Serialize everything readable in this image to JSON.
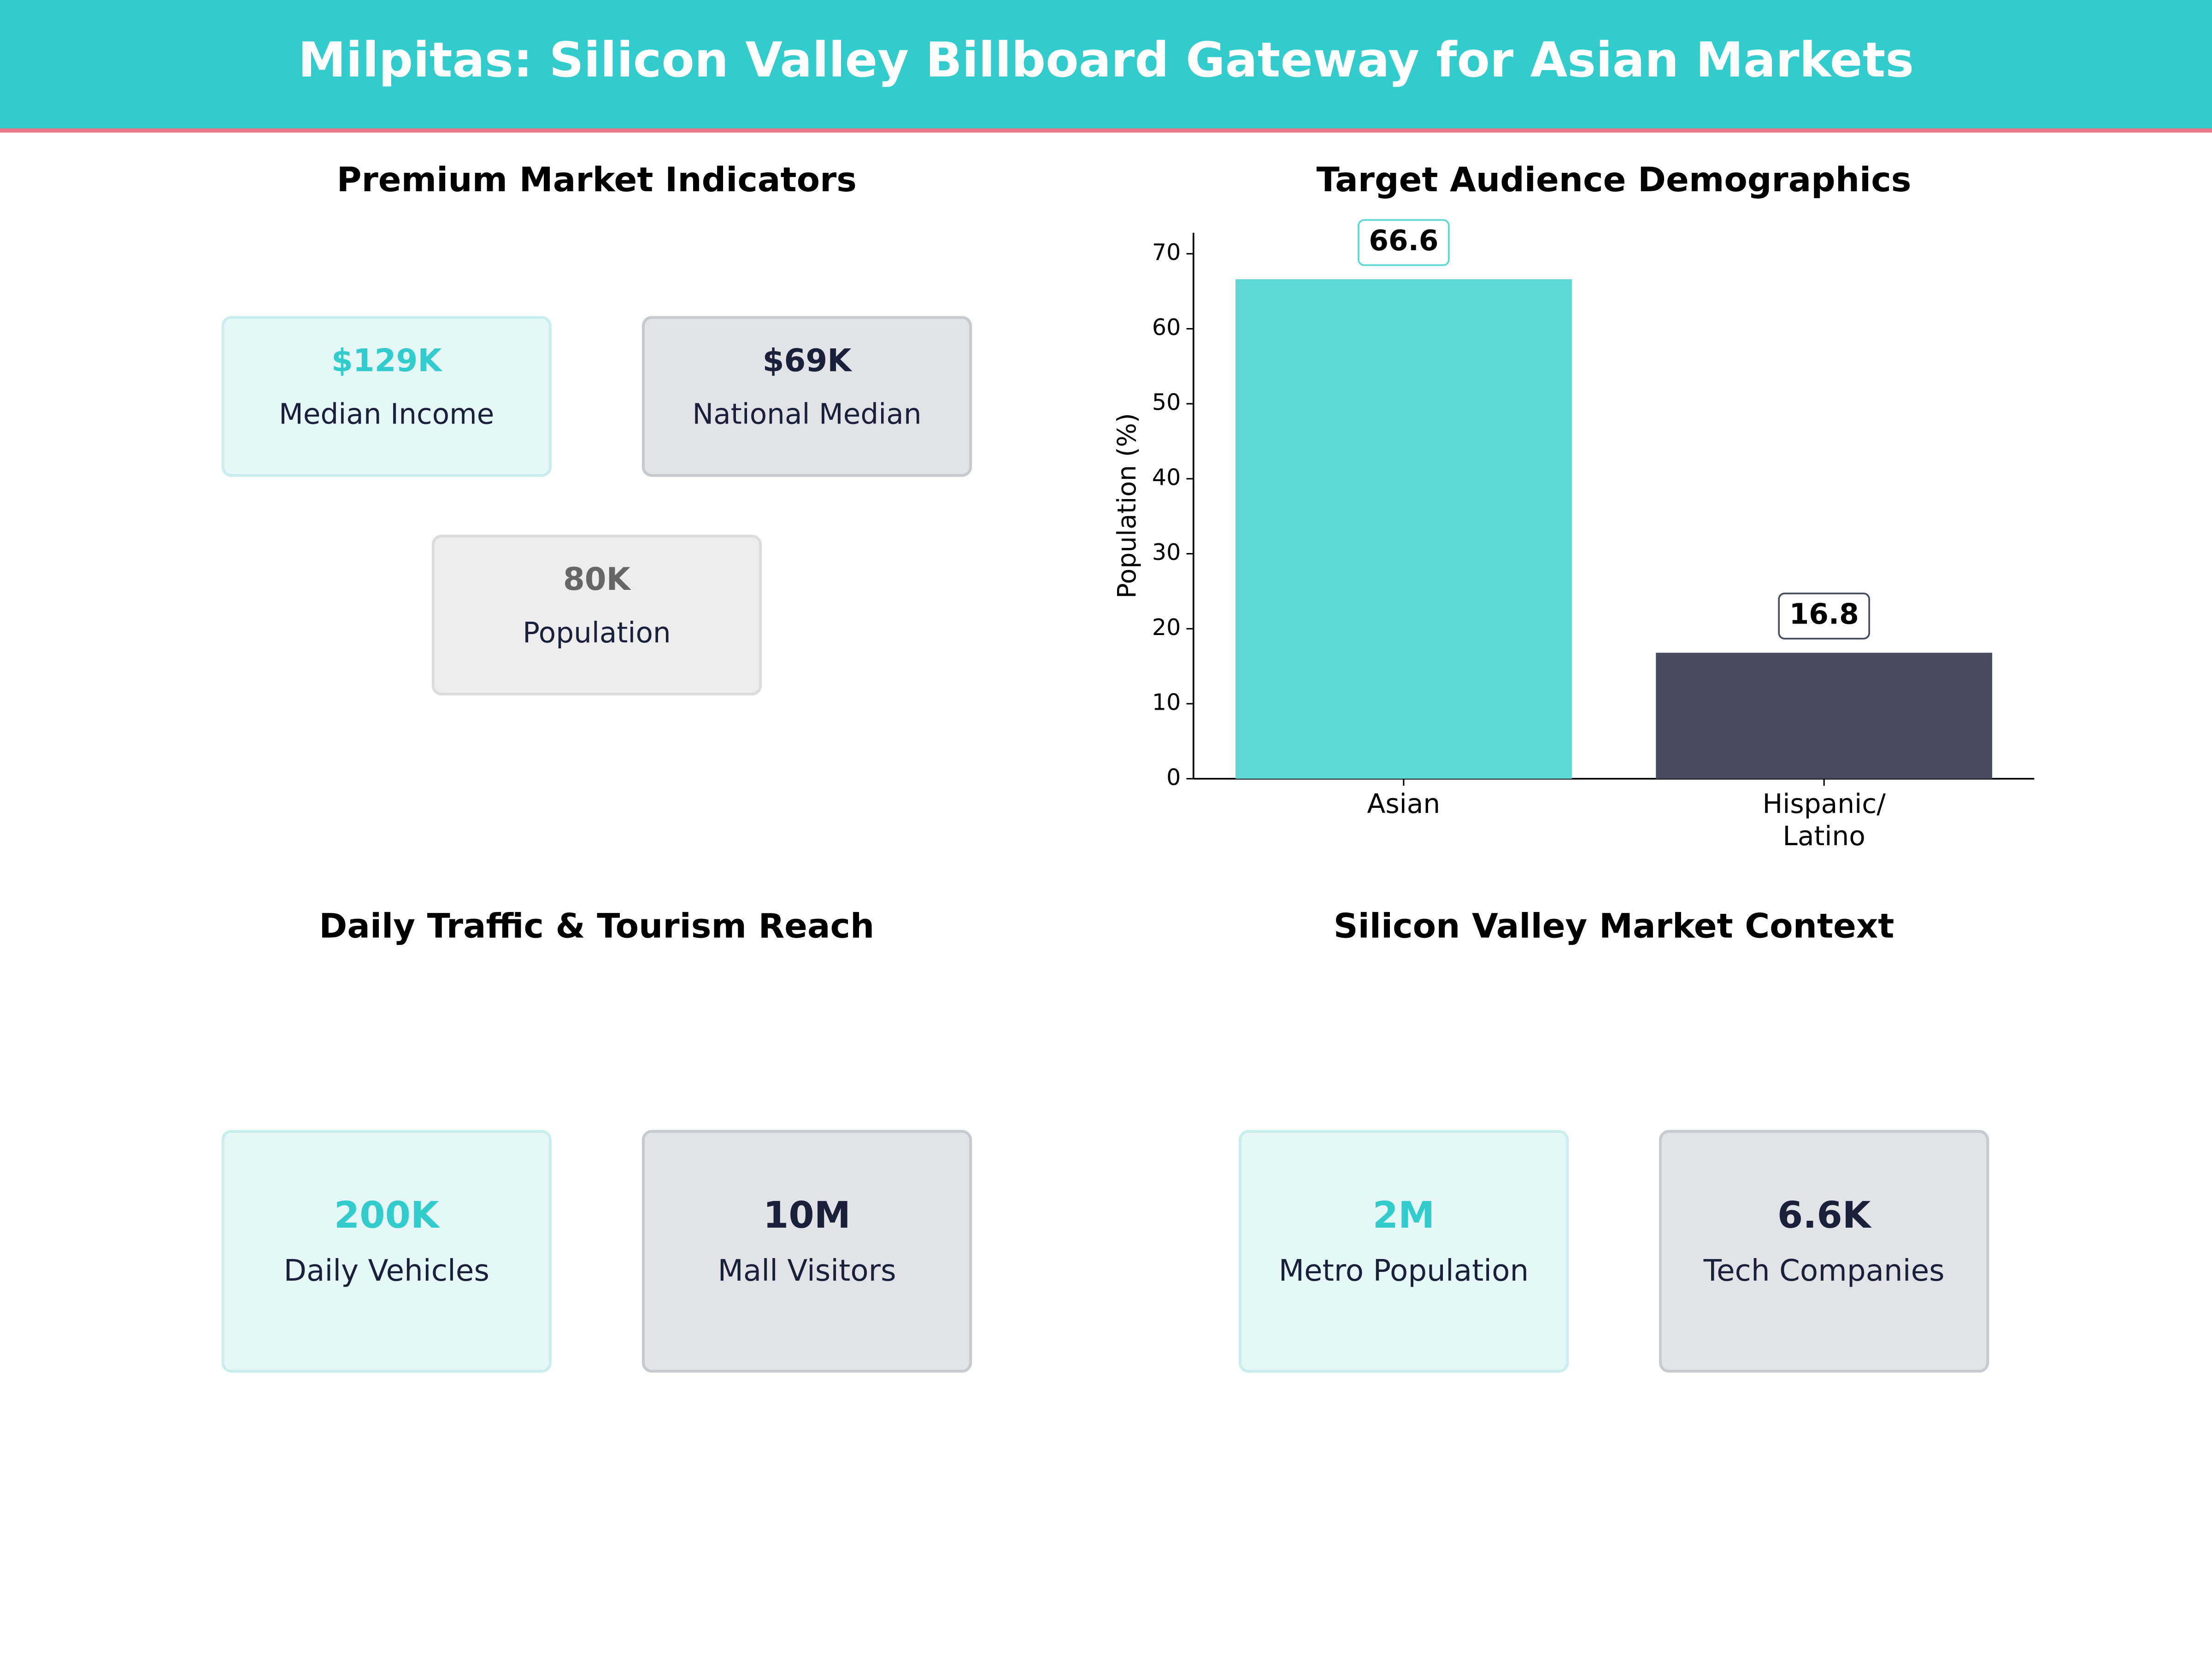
{
  "title": "Milpitas: Silicon Valley Billboard Gateway for Asian Markets",
  "kpi_panels": [
    {
      "title": "Premium Market Indicators",
      "cards": [
        {
          "value": "$129K",
          "label": "Median Income"
        },
        {
          "value": "$69K",
          "label": "National Median"
        },
        {
          "value": "80K",
          "label": "Population"
        }
      ]
    },
    {
      "title": "Daily Traffic & Tourism Reach",
      "cards": [
        {
          "value": "200K",
          "label": "Daily Vehicles"
        },
        {
          "value": "10M",
          "label": "Mall Visitors"
        }
      ]
    },
    {
      "title": "Silicon Valley Market Context",
      "cards": [
        {
          "value": "2M",
          "label": "Metro Population"
        },
        {
          "value": "6.6K",
          "label": "Tech Companies"
        }
      ]
    }
  ],
  "chart_data": {
    "type": "bar",
    "title": "Target Audience Demographics",
    "y_label": "Population (%)",
    "categories": [
      "Asian",
      "Hispanic/\nLatino"
    ],
    "values": [
      66.6,
      16.8
    ],
    "colors": [
      "#5dd8d5",
      "#474b62"
    ],
    "label_border_colors": [
      "#5dd8d5",
      "#474b62"
    ],
    "ylim": [
      0,
      72.8
    ],
    "yticks": [
      0,
      10,
      20,
      30,
      40,
      50,
      60,
      70
    ]
  }
}
